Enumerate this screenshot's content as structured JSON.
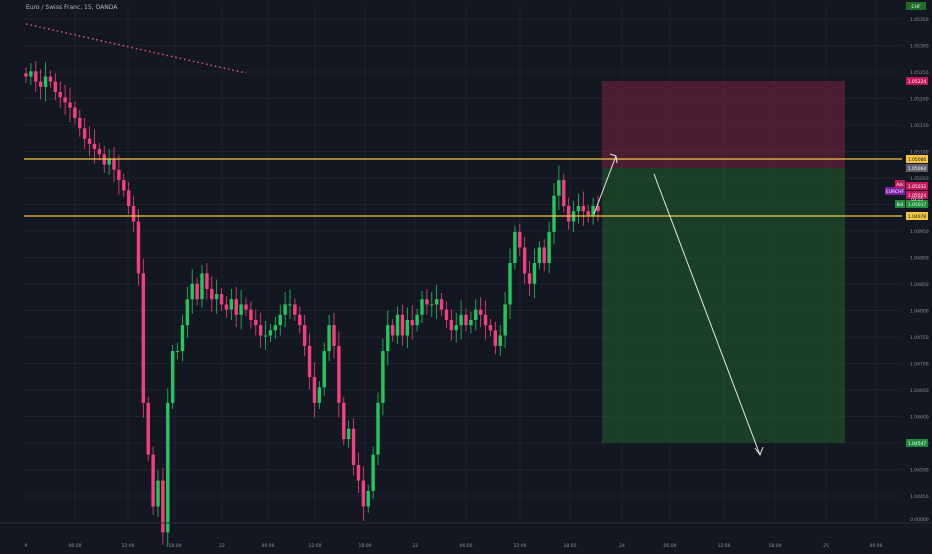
{
  "header": {
    "title": "Euro / Swiss Franc, 15, OANDA"
  },
  "colors": {
    "background": "#131722",
    "grid": "#1e222d",
    "bull": "#22c55e",
    "bear": "#f23f80",
    "hline": "#f5c542",
    "stop_zone": "#7a2040",
    "target_zone": "#1f5a2a",
    "trend_dots": "#e0557a",
    "arrow": "#e8e8e8"
  },
  "price_axis": {
    "top_tag": "CHF",
    "top_value": "1.05400",
    "labels": [
      "1.05350",
      "1.05300",
      "1.05250",
      "1.05200",
      "1.05150",
      "1.05100",
      "1.05050",
      "1.05000",
      "1.04950",
      "1.04900",
      "1.04850",
      "1.04800",
      "1.04750",
      "1.04700",
      "1.04650",
      "1.04600",
      "1.04550",
      "1.04500",
      "1.04450"
    ],
    "bottom_value": "0.00000"
  },
  "tags": {
    "stop": "1.05224",
    "upper_level": "1.05086",
    "entry": "1.05064",
    "ask": "1.05032",
    "pair": "EURCHF",
    "pair_price": "1.05024",
    "countdown": "03:15",
    "bid": "1.05017",
    "lower_level": "1.04978",
    "target": "1.04547",
    "ask_label": "Ask",
    "bid_label": "Bid"
  },
  "time_axis": [
    "9",
    "06:00",
    "12:00",
    "18:00",
    "22",
    "06:00",
    "12:00",
    "18:00",
    "23",
    "06:00",
    "12:00",
    "18:00",
    "24",
    "06:00",
    "12:00",
    "18:00",
    "25",
    "06:00"
  ],
  "chart_data": {
    "type": "candlestick",
    "symbol": "EURCHF",
    "timeframe": "15",
    "ylim": [
      1.0442,
      1.0542
    ],
    "grid": true,
    "horizontal_levels": [
      1.05086,
      1.04978
    ],
    "position": {
      "entry": 1.05064,
      "stop": 1.05224,
      "target": 1.04547
    },
    "close_series": [
      1.0528,
      1.0529,
      1.0527,
      1.0526,
      1.0528,
      1.0527,
      1.0525,
      1.0524,
      1.0523,
      1.0522,
      1.052,
      1.0518,
      1.0516,
      1.0515,
      1.0514,
      1.0513,
      1.0511,
      1.0512,
      1.051,
      1.0508,
      1.0506,
      1.0503,
      1.05,
      1.049,
      1.0465,
      1.0455,
      1.0445,
      1.045,
      1.044,
      1.0465,
      1.0475,
      1.0475,
      1.048,
      1.0485,
      1.0488,
      1.0485,
      1.049,
      1.0487,
      1.0485,
      1.0486,
      1.0484,
      1.0483,
      1.0485,
      1.0482,
      1.0484,
      1.0483,
      1.0481,
      1.048,
      1.0478,
      1.0478,
      1.0479,
      1.048,
      1.0482,
      1.0484,
      1.0484,
      1.0482,
      1.048,
      1.0476,
      1.047,
      1.0465,
      1.0468,
      1.0475,
      1.048,
      1.0476,
      1.0465,
      1.0458,
      1.046,
      1.0453,
      1.045,
      1.0445,
      1.0448,
      1.0455,
      1.0465,
      1.0475,
      1.048,
      1.0478,
      1.0482,
      1.0478,
      1.0481,
      1.048,
      1.0482,
      1.0485,
      1.0484,
      1.0484,
      1.0485,
      1.0483,
      1.0481,
      1.0479,
      1.048,
      1.0482,
      1.048,
      1.0481,
      1.0483,
      1.0482,
      1.048,
      1.0479,
      1.0476,
      1.0478,
      1.0484,
      1.0492,
      1.0498,
      1.0495,
      1.049,
      1.0488,
      1.0492,
      1.0495,
      1.0492,
      1.0498,
      1.0505,
      1.0508,
      1.0503,
      1.05,
      1.0502,
      1.0503,
      1.0502,
      1.0501,
      1.0503,
      1.0502
    ]
  }
}
